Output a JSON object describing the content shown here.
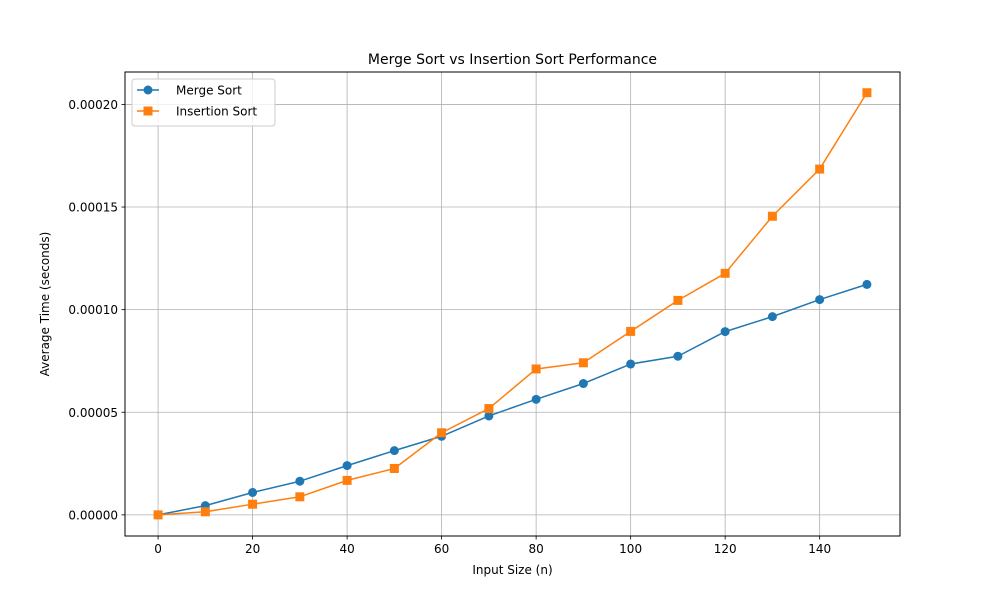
{
  "chart_data": {
    "type": "line",
    "title": "Merge Sort vs Insertion Sort Performance",
    "xlabel": "Input Size (n)",
    "ylabel": "Average Time (seconds)",
    "xlim": [
      -7,
      157
    ],
    "ylim": [
      -1.03e-05,
      0.0002158
    ],
    "x_ticks": [
      0,
      20,
      40,
      60,
      80,
      100,
      120,
      140
    ],
    "x_tick_labels": [
      "0",
      "20",
      "40",
      "60",
      "80",
      "100",
      "120",
      "140"
    ],
    "y_ticks": [
      0,
      5e-05,
      0.0001,
      0.00015,
      0.0002
    ],
    "y_tick_labels": [
      "0.00000",
      "0.00005",
      "0.00010",
      "0.00015",
      "0.00020"
    ],
    "grid": true,
    "legend_position": "top-left",
    "x": [
      0,
      10,
      20,
      30,
      40,
      50,
      60,
      70,
      80,
      90,
      100,
      110,
      120,
      130,
      140,
      150
    ],
    "series": [
      {
        "name": "Merge Sort",
        "color": "#1f77b4",
        "marker": "circle",
        "values": [
          0.0,
          4.5e-06,
          1.09e-05,
          1.64e-05,
          2.4e-05,
          3.13e-05,
          3.83e-05,
          4.82e-05,
          5.63e-05,
          6.4e-05,
          7.35e-05,
          7.73e-05,
          8.93e-05,
          9.66e-05,
          0.0001049,
          0.0001123
        ]
      },
      {
        "name": "Insertion Sort",
        "color": "#ff7f0e",
        "marker": "square",
        "values": [
          0.0,
          1.5e-06,
          5.2e-06,
          8.8e-06,
          1.68e-05,
          2.26e-05,
          4e-05,
          5.18e-05,
          7.11e-05,
          7.41e-05,
          8.94e-05,
          0.0001045,
          0.0001177,
          0.0001455,
          0.0001685,
          0.0002057
        ]
      }
    ]
  }
}
